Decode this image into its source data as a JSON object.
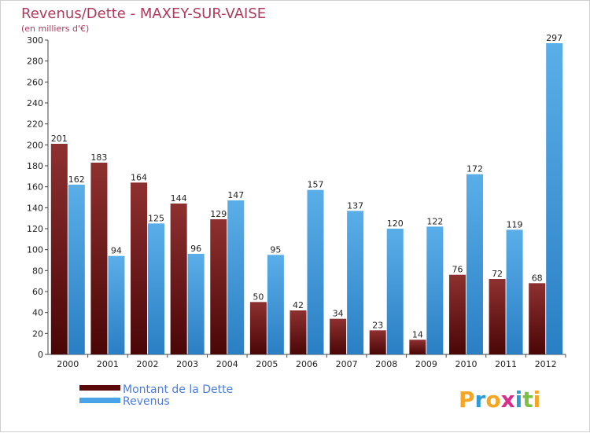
{
  "chart_data": {
    "type": "bar",
    "title": "Revenus/Dette - MAXEY-SUR-VAISE",
    "subtitle": "(en milliers d'€)",
    "categories": [
      "2000",
      "2001",
      "2002",
      "2003",
      "2004",
      "2005",
      "2006",
      "2007",
      "2008",
      "2009",
      "2010",
      "2011",
      "2012"
    ],
    "series": [
      {
        "name": "Montant de la Dette",
        "color": "#7a1f1f",
        "values": [
          201,
          183,
          164,
          144,
          129,
          50,
          42,
          34,
          23,
          14,
          76,
          72,
          68
        ]
      },
      {
        "name": "Revenus",
        "color": "#4aa3e6",
        "values": [
          162,
          94,
          125,
          96,
          147,
          95,
          157,
          137,
          120,
          122,
          172,
          119,
          297
        ]
      }
    ],
    "ylim": [
      0,
      300
    ],
    "yticks": [
      0,
      20,
      40,
      60,
      80,
      100,
      120,
      140,
      160,
      180,
      200,
      220,
      240,
      260,
      280,
      300
    ],
    "grid": false,
    "legend_position": "bottom-left"
  },
  "logo": {
    "letters": [
      "P",
      "r",
      "o",
      "x",
      "i",
      "t",
      "i"
    ],
    "colors": [
      "#f5a623",
      "#2e9bd6",
      "#f5a623",
      "#d62e8a",
      "#2e9bd6",
      "#7cc242",
      "#f5a623"
    ]
  }
}
